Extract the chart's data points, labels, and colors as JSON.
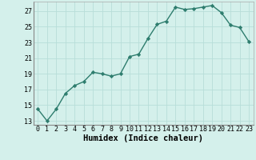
{
  "xlabel": "Humidex (Indice chaleur)",
  "x": [
    0,
    1,
    2,
    3,
    4,
    5,
    6,
    7,
    8,
    9,
    10,
    11,
    12,
    13,
    14,
    15,
    16,
    17,
    18,
    19,
    20,
    21,
    22,
    23
  ],
  "y": [
    14.5,
    13.0,
    14.5,
    16.5,
    17.5,
    18.0,
    19.2,
    19.0,
    18.7,
    19.0,
    21.2,
    21.5,
    23.5,
    25.3,
    25.7,
    27.5,
    27.2,
    27.3,
    27.5,
    27.7,
    26.8,
    25.2,
    24.9,
    23.1
  ],
  "line_color": "#2e7d6e",
  "marker": "D",
  "marker_size": 2.2,
  "line_width": 1.0,
  "bg_color": "#d4f0eb",
  "grid_color": "#b8ddd8",
  "yticks": [
    13,
    15,
    17,
    19,
    21,
    23,
    25,
    27
  ],
  "ylim": [
    12.5,
    28.2
  ],
  "xlim": [
    -0.5,
    23.5
  ],
  "xlabel_fontsize": 7.5,
  "tick_fontsize": 6.0
}
